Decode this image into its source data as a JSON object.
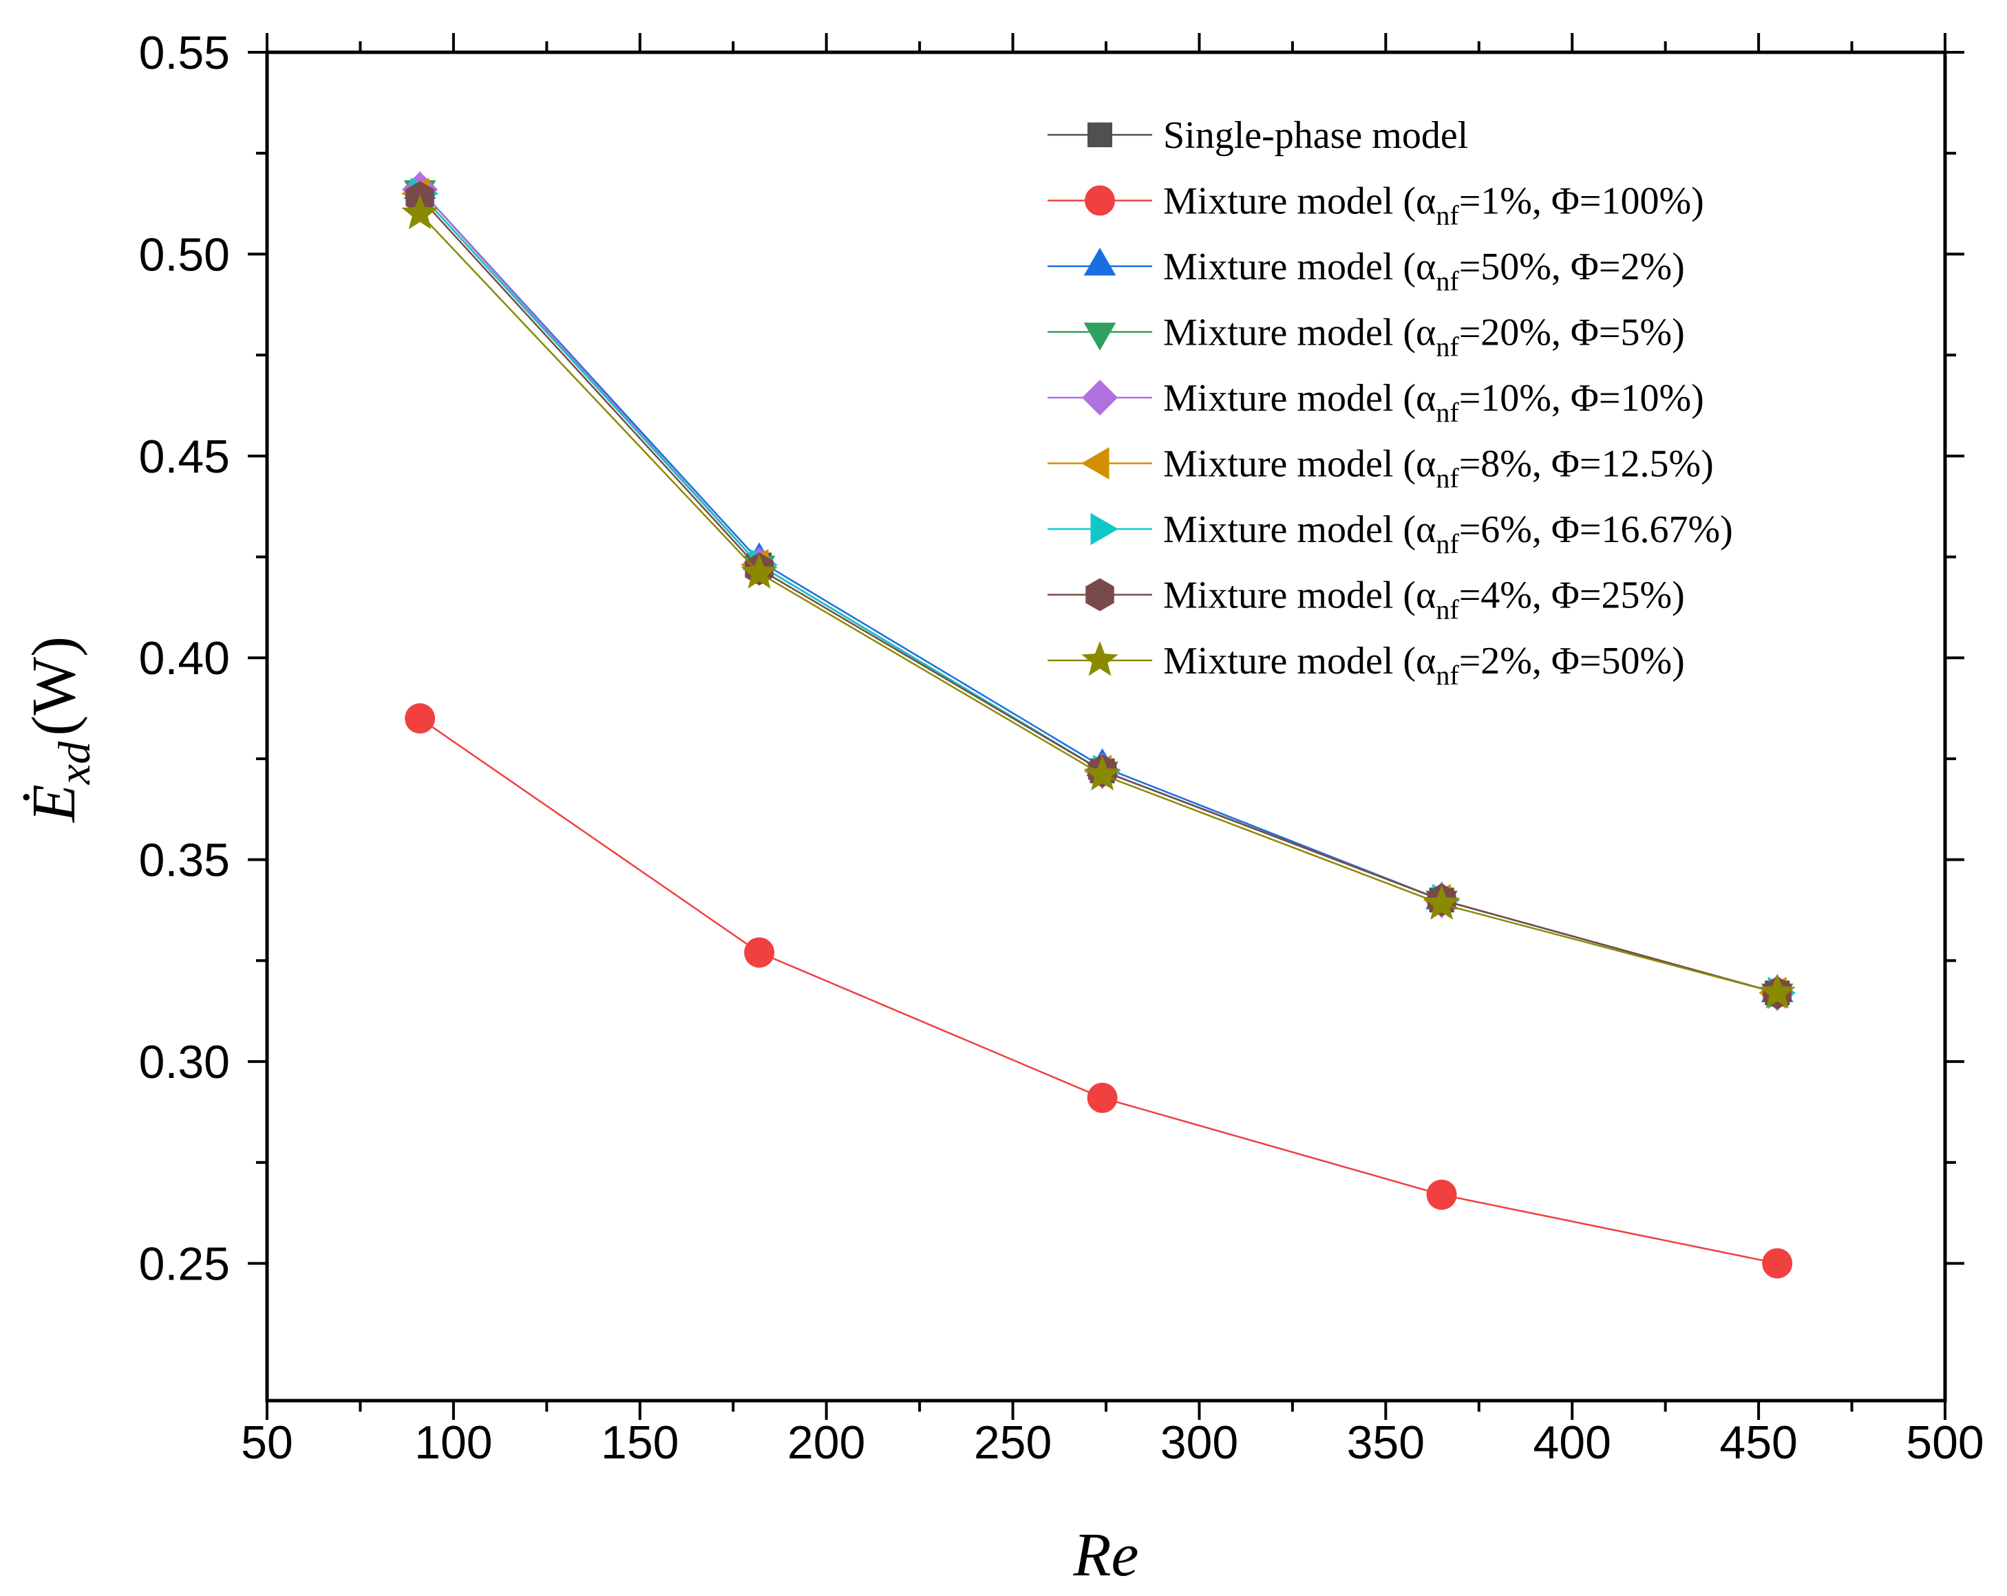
{
  "chart_data": {
    "type": "line",
    "title": "",
    "xlabel": "Re",
    "ylabel_main": "Ė",
    "ylabel_sub": "xd",
    "ylabel_unit": "(W)",
    "xlim": [
      50,
      500
    ],
    "ylim": [
      0.216,
      0.55
    ],
    "xticks": [
      50,
      100,
      150,
      200,
      250,
      300,
      350,
      400,
      450,
      500
    ],
    "xtick_labels": [
      "50",
      "100",
      "150",
      "200",
      "250",
      "300",
      "350",
      "400",
      "450",
      "500"
    ],
    "yticks": [
      0.25,
      0.3,
      0.35,
      0.4,
      0.45,
      0.5,
      0.55
    ],
    "ytick_labels": [
      "0.25",
      "0.30",
      "0.35",
      "0.40",
      "0.45",
      "0.50",
      "0.55"
    ],
    "legend_position": "top-right",
    "x": [
      91,
      182,
      274,
      365,
      455
    ],
    "series": [
      {
        "name": "Single-phase model",
        "label_parts": [
          "Single-phase model"
        ],
        "marker": "square",
        "color": "#505050",
        "values": [
          0.515,
          0.423,
          0.372,
          0.34,
          0.317
        ]
      },
      {
        "name": "Mixture model (αnf=1%, Φ=100%)",
        "label_parts": [
          "Mixture model (α",
          "nf",
          "=1%, Φ=100%)"
        ],
        "marker": "circle",
        "color": "#f04040",
        "values": [
          0.385,
          0.327,
          0.291,
          0.267,
          0.25
        ]
      },
      {
        "name": "Mixture model (αnf=50%, Φ=2%)",
        "label_parts": [
          "Mixture model (α",
          "nf",
          "=50%, Φ=2%)"
        ],
        "marker": "triangle-up",
        "color": "#1a6fe0",
        "values": [
          0.516,
          0.424,
          0.373,
          0.34,
          0.317
        ]
      },
      {
        "name": "Mixture model (αnf=20%, Φ=5%)",
        "label_parts": [
          "Mixture model (α",
          "nf",
          "=20%, Φ=5%)"
        ],
        "marker": "triangle-down",
        "color": "#30a060",
        "values": [
          0.516,
          0.423,
          0.372,
          0.34,
          0.317
        ]
      },
      {
        "name": "Mixture model (αnf=10%, Φ=10%)",
        "label_parts": [
          "Mixture model (α",
          "nf",
          "=10%, Φ=10%)"
        ],
        "marker": "diamond",
        "color": "#b070e0",
        "values": [
          0.516,
          0.423,
          0.372,
          0.34,
          0.317
        ]
      },
      {
        "name": "Mixture model (αnf=8%, Φ=12.5%)",
        "label_parts": [
          "Mixture model (α",
          "nf",
          "=8%, Φ=12.5%)"
        ],
        "marker": "triangle-left",
        "color": "#d09000",
        "values": [
          0.515,
          0.423,
          0.372,
          0.34,
          0.317
        ]
      },
      {
        "name": "Mixture model (αnf=6%, Φ=16.67%)",
        "label_parts": [
          "Mixture model (α",
          "nf",
          "=6%, Φ=16.67%)"
        ],
        "marker": "triangle-right",
        "color": "#10c8c8",
        "values": [
          0.515,
          0.423,
          0.372,
          0.34,
          0.317
        ]
      },
      {
        "name": "Mixture model (αnf=4%, Φ=25%)",
        "label_parts": [
          "Mixture model (α",
          "nf",
          "=4%, Φ=25%)"
        ],
        "marker": "hexagon",
        "color": "#7a4a4a",
        "values": [
          0.514,
          0.422,
          0.372,
          0.34,
          0.317
        ]
      },
      {
        "name": "Mixture model (αnf=2%, Φ=50%)",
        "label_parts": [
          "Mixture model (α",
          "nf",
          "=2%, Φ=50%)"
        ],
        "marker": "star",
        "color": "#8a8a00",
        "values": [
          0.51,
          0.421,
          0.371,
          0.339,
          0.317
        ]
      }
    ]
  }
}
